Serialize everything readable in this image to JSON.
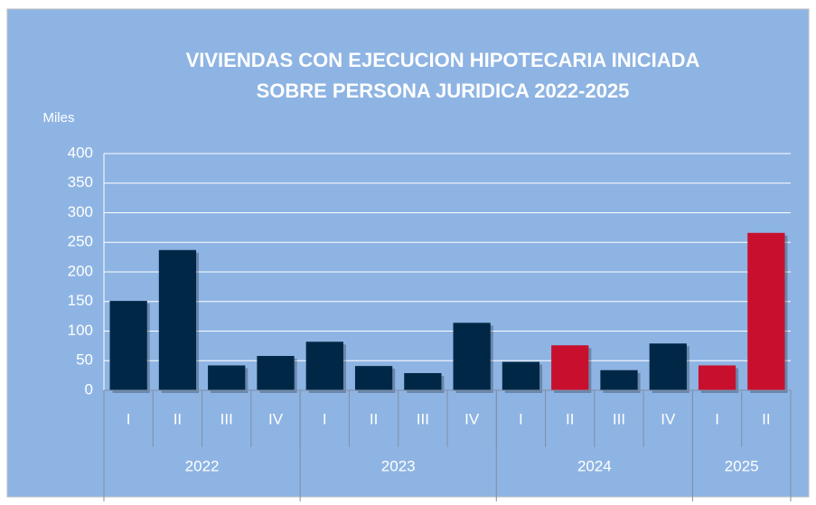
{
  "chart_data": {
    "type": "bar",
    "title": [
      "VIVIENDAS CON EJECUCION HIPOTECARIA INICIADA",
      "SOBRE PERSONA JURIDICA 2022-2025"
    ],
    "y_label": "Miles",
    "categories": [
      "I",
      "II",
      "III",
      "IV",
      "I",
      "II",
      "III",
      "IV",
      "I",
      "II",
      "III",
      "IV",
      "I",
      "II"
    ],
    "groups": [
      {
        "label": "2022",
        "size": 4
      },
      {
        "label": "2023",
        "size": 4
      },
      {
        "label": "2024",
        "size": 4
      },
      {
        "label": "2025",
        "size": 2
      }
    ],
    "values": [
      151,
      237,
      42,
      58,
      82,
      41,
      29,
      114,
      48,
      76,
      34,
      79,
      42,
      266
    ],
    "colors": [
      "#002846",
      "#002846",
      "#002846",
      "#002846",
      "#002846",
      "#002846",
      "#002846",
      "#002846",
      "#002846",
      "#c8102e",
      "#002846",
      "#002846",
      "#c8102e",
      "#c8102e"
    ],
    "ylim": [
      0,
      400
    ],
    "yticks": [
      0,
      50,
      100,
      150,
      200,
      250,
      300,
      350,
      400
    ],
    "grid": true
  }
}
